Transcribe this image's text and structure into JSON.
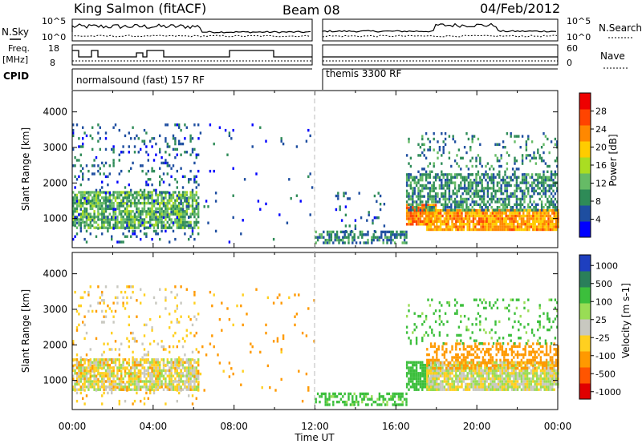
{
  "header": {
    "site": "King Salmon (fitACF)",
    "beam": "Beam 08",
    "date": "04/Feb/2012"
  },
  "strip_labels": {
    "nsky": "N.Sky",
    "nsky_ticks": [
      "10^5",
      "10^0"
    ],
    "freq_line1": "Freq.",
    "freq_line2": "[MHz]",
    "freq_ticks": [
      "18",
      "8"
    ],
    "cpid": "CPID",
    "nsearch": "N.Search",
    "nave": "Nave",
    "nave_ticks": [
      "60",
      "0"
    ],
    "cpid_segments": [
      "normalsound (fast) 157 RF",
      "themis 3300 RF"
    ]
  },
  "colors": {
    "power_scale": [
      "#0000ff",
      "#1e4ea0",
      "#2e8b57",
      "#66bb66",
      "#aadd22",
      "#ffcc00",
      "#ff8800",
      "#ff4400",
      "#ee0000"
    ],
    "velocity_scale": [
      "#1e3fbf",
      "#2a7f5a",
      "#3cbf3c",
      "#99dd55",
      "#c8c8c0",
      "#ffd020",
      "#ff9900",
      "#ff5500",
      "#e00000"
    ]
  },
  "chart_data": [
    {
      "type": "heatmap",
      "panel": "power",
      "xlabel": "Time UT",
      "ylabel": "Slant Range [km]",
      "xlim": [
        0,
        24
      ],
      "ylim": [
        180,
        4600
      ],
      "x_ticks": [
        "00:00",
        "04:00",
        "08:00",
        "12:00",
        "16:00",
        "20:00",
        "00:00"
      ],
      "y_ticks": [
        1000,
        2000,
        3000,
        4000
      ],
      "colorbar": {
        "label": "Power [dB]",
        "ticks": [
          4,
          8,
          12,
          16,
          20,
          24,
          28
        ],
        "range": [
          0,
          32
        ]
      },
      "regions": [
        {
          "t": [
            0.0,
            6.2
          ],
          "r": [
            700,
            1700
          ],
          "level": 12,
          "density": 0.75
        },
        {
          "t": [
            0.0,
            6.2
          ],
          "r": [
            300,
            3600
          ],
          "level": 6,
          "density": 0.12
        },
        {
          "t": [
            6.2,
            12.0
          ],
          "r": [
            300,
            3600
          ],
          "level": 5,
          "density": 0.02
        },
        {
          "t": [
            12.0,
            16.5
          ],
          "r": [
            200,
            600
          ],
          "level": 8,
          "density": 0.55
        },
        {
          "t": [
            13.0,
            15.5
          ],
          "r": [
            600,
            1700
          ],
          "level": 6,
          "density": 0.1
        },
        {
          "t": [
            16.5,
            18.0
          ],
          "r": [
            800,
            1400
          ],
          "level": 24,
          "density": 0.85
        },
        {
          "t": [
            17.5,
            24.0
          ],
          "r": [
            650,
            1200
          ],
          "level": 22,
          "density": 0.9
        },
        {
          "t": [
            16.5,
            24.0
          ],
          "r": [
            1200,
            2200
          ],
          "level": 9,
          "density": 0.6
        },
        {
          "t": [
            16.5,
            24.0
          ],
          "r": [
            2200,
            3400
          ],
          "level": 8,
          "density": 0.15
        }
      ]
    },
    {
      "type": "heatmap",
      "panel": "velocity",
      "xlabel": "Time UT",
      "ylabel": "Slant Range [km]",
      "xlim": [
        0,
        24
      ],
      "ylim": [
        180,
        4600
      ],
      "x_ticks": [
        "00:00",
        "04:00",
        "08:00",
        "12:00",
        "16:00",
        "20:00",
        "00:00"
      ],
      "y_ticks": [
        1000,
        2000,
        3000,
        4000
      ],
      "colorbar": {
        "label": "Velocity [m s-1]",
        "ticks": [
          "1000",
          "500",
          "100",
          "25",
          "-25",
          "-100",
          "-500",
          "-1000"
        ]
      },
      "regions": [
        {
          "t": [
            0.0,
            6.2
          ],
          "r": [
            700,
            1600
          ],
          "v": 0,
          "density": 0.75
        },
        {
          "t": [
            0.0,
            6.2
          ],
          "r": [
            700,
            1600
          ],
          "v": -150,
          "density": 0.12
        },
        {
          "t": [
            0.0,
            6.2
          ],
          "r": [
            300,
            3600
          ],
          "v": -60,
          "density": 0.1
        },
        {
          "t": [
            6.2,
            12.0
          ],
          "r": [
            300,
            3600
          ],
          "v": -150,
          "density": 0.02
        },
        {
          "t": [
            12.0,
            16.5
          ],
          "r": [
            200,
            600
          ],
          "v": 150,
          "density": 0.5
        },
        {
          "t": [
            16.5,
            18.0
          ],
          "r": [
            700,
            1500
          ],
          "v": 200,
          "density": 0.8
        },
        {
          "t": [
            17.5,
            24.0
          ],
          "r": [
            700,
            1500
          ],
          "v": 0,
          "density": 0.9
        },
        {
          "t": [
            17.5,
            24.0
          ],
          "r": [
            1300,
            2000
          ],
          "v": -200,
          "density": 0.45
        },
        {
          "t": [
            16.5,
            24.0
          ],
          "r": [
            2000,
            3300
          ],
          "v": 150,
          "density": 0.15
        }
      ]
    }
  ]
}
